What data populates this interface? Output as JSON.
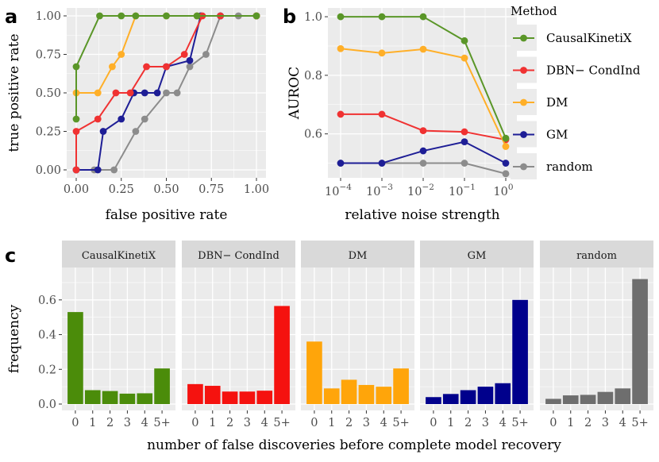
{
  "panels": {
    "a": "a",
    "b": "b",
    "c": "c"
  },
  "chart_data": [
    {
      "id": "a",
      "type": "line",
      "xlabel": "false positive rate",
      "ylabel": "true positive rate",
      "xlim": [
        0,
        1
      ],
      "ylim": [
        0,
        1
      ],
      "xticks": [
        "0.00",
        "0.25",
        "0.50",
        "0.75",
        "1.00"
      ],
      "yticks": [
        "0.00",
        "0.25",
        "0.50",
        "0.75",
        "1.00"
      ],
      "series": [
        {
          "name": "random",
          "color": "#8c8c8c",
          "points": [
            [
              0,
              0
            ],
            [
              0.1,
              0
            ],
            [
              0.21,
              0
            ],
            [
              0.33,
              0.25
            ],
            [
              0.38,
              0.33
            ],
            [
              0.5,
              0.5
            ],
            [
              0.56,
              0.5
            ],
            [
              0.63,
              0.67
            ],
            [
              0.72,
              0.75
            ],
            [
              0.8,
              1
            ],
            [
              0.9,
              1
            ],
            [
              1,
              1
            ]
          ]
        },
        {
          "name": "GM",
          "color": "#1e1e96",
          "points": [
            [
              0,
              0
            ],
            [
              0.12,
              0
            ],
            [
              0.15,
              0.25
            ],
            [
              0.25,
              0.33
            ],
            [
              0.32,
              0.5
            ],
            [
              0.38,
              0.5
            ],
            [
              0.45,
              0.5
            ],
            [
              0.5,
              0.67
            ],
            [
              0.63,
              0.71
            ],
            [
              0.69,
              1
            ],
            [
              0.8,
              1
            ],
            [
              1,
              1
            ]
          ]
        },
        {
          "name": "DBN-CondInd",
          "color": "#f03232",
          "points": [
            [
              0,
              0
            ],
            [
              0,
              0.25
            ],
            [
              0.12,
              0.33
            ],
            [
              0.22,
              0.5
            ],
            [
              0.3,
              0.5
            ],
            [
              0.39,
              0.67
            ],
            [
              0.5,
              0.67
            ],
            [
              0.6,
              0.75
            ],
            [
              0.7,
              1
            ],
            [
              0.8,
              1
            ],
            [
              1,
              1
            ]
          ]
        },
        {
          "name": "DM",
          "color": "#ffaf28",
          "points": [
            [
              0,
              0.5
            ],
            [
              0.12,
              0.5
            ],
            [
              0.2,
              0.67
            ],
            [
              0.25,
              0.75
            ],
            [
              0.33,
              1
            ],
            [
              0.5,
              1
            ],
            [
              0.67,
              1
            ],
            [
              1,
              1
            ]
          ]
        },
        {
          "name": "CausalKinetiX",
          "color": "#5a9628",
          "points": [
            [
              0,
              0.33
            ],
            [
              0,
              0.67
            ],
            [
              0.13,
              1
            ],
            [
              0.25,
              1
            ],
            [
              0.33,
              1
            ],
            [
              0.5,
              1
            ],
            [
              0.67,
              1
            ],
            [
              1,
              1
            ]
          ]
        }
      ]
    },
    {
      "id": "b",
      "type": "line",
      "xlabel": "relative noise strength",
      "ylabel": "AUROC",
      "xlim": [
        -4,
        0
      ],
      "ylim": [
        0.45,
        1.03
      ],
      "xtick_base": "10",
      "xtick_exps": [
        "−4",
        "−3",
        "−2",
        "−1",
        "0"
      ],
      "xtick_values": [
        -4,
        -3,
        -2,
        -1,
        0
      ],
      "yticks": [
        0.6,
        0.8,
        1.0
      ],
      "ytick_labels": [
        "0.6",
        "0.8",
        "1.0"
      ],
      "legend_title": "Method",
      "legend_position": "right",
      "series": [
        {
          "name": "CausalKinetiX",
          "color": "#5a9628",
          "x": [
            -4,
            -3,
            -2,
            -1,
            0
          ],
          "y": [
            1.0,
            1.0,
            1.0,
            0.918,
            0.585
          ]
        },
        {
          "name": "DBN− CondInd",
          "color": "#f03232",
          "x": [
            -4,
            -3,
            -2,
            -1,
            0
          ],
          "y": [
            0.667,
            0.667,
            0.611,
            0.607,
            0.58
          ]
        },
        {
          "name": "DM",
          "color": "#ffaf28",
          "x": [
            -4,
            -3,
            -2,
            -1,
            0
          ],
          "y": [
            0.891,
            0.876,
            0.889,
            0.859,
            0.557
          ]
        },
        {
          "name": "GM",
          "color": "#1e1e96",
          "x": [
            -4,
            -3,
            -2,
            -1,
            0
          ],
          "y": [
            0.5,
            0.5,
            0.542,
            0.573,
            0.5
          ]
        },
        {
          "name": "random",
          "color": "#8c8c8c",
          "x": [
            -4,
            -3,
            -2,
            -1,
            0
          ],
          "y": [
            0.5,
            0.5,
            0.5,
            0.5,
            0.464
          ]
        }
      ]
    },
    {
      "id": "c",
      "type": "bar",
      "xlabel": "number of false discoveries before complete model recovery",
      "ylabel": "frequency",
      "categories": [
        "0",
        "1",
        "2",
        "3",
        "4",
        "5+"
      ],
      "ylim": [
        0,
        0.75
      ],
      "yticks": [
        0.0,
        0.2,
        0.4,
        0.6
      ],
      "ytick_labels": [
        "0.0",
        "0.2",
        "0.4",
        "0.6"
      ],
      "facets": [
        {
          "name": "CausalKinetiX",
          "color": "#4b8c0a",
          "values": [
            0.53,
            0.08,
            0.075,
            0.06,
            0.062,
            0.205
          ]
        },
        {
          "name": "DBN− CondInd",
          "color": "#f5120f",
          "values": [
            0.115,
            0.105,
            0.072,
            0.072,
            0.077,
            0.565
          ]
        },
        {
          "name": "DM",
          "color": "#ffa50a",
          "values": [
            0.36,
            0.09,
            0.14,
            0.11,
            0.1,
            0.205
          ]
        },
        {
          "name": "GM",
          "color": "#00008c",
          "values": [
            0.04,
            0.058,
            0.08,
            0.1,
            0.12,
            0.6
          ]
        },
        {
          "name": "random",
          "color": "#6e6e6e",
          "values": [
            0.03,
            0.05,
            0.053,
            0.07,
            0.09,
            0.72
          ]
        }
      ]
    }
  ]
}
